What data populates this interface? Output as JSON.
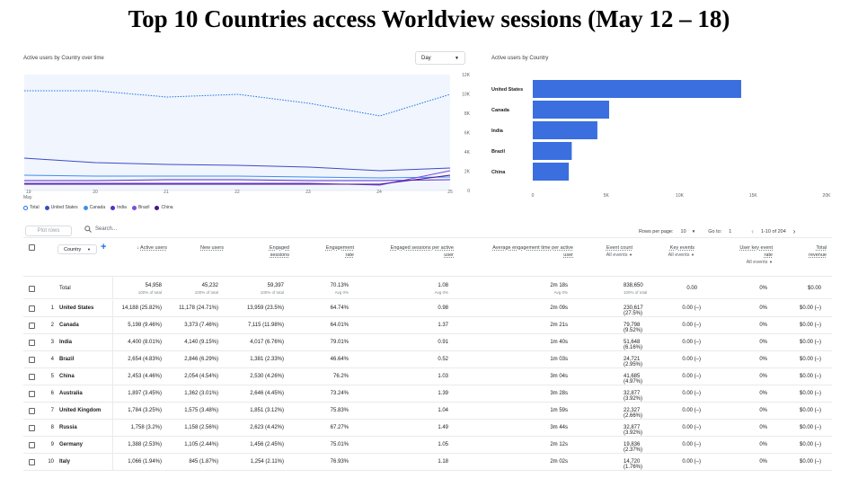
{
  "title": "Top 10 Countries access Worldview sessions (May 12 – 18)",
  "line_chart": {
    "title": "Active users by Country over time",
    "period_select": "Day",
    "y_ticks": [
      "12K",
      "10K",
      "8K",
      "6K",
      "4K",
      "2K",
      "0"
    ],
    "x_ticks": [
      "19",
      "20",
      "21",
      "22",
      "23",
      "24",
      "25"
    ],
    "x_month": "May",
    "legend": [
      "Total",
      "United States",
      "Canada",
      "India",
      "Brazil",
      "China"
    ],
    "colors": [
      "#1a73e8",
      "#3c4cc8",
      "#3f8ef0",
      "#5a2bd0",
      "#7b4ce0",
      "#4a148c"
    ]
  },
  "chart_data": {
    "type": "bar",
    "title": "Active users by Country",
    "categories": [
      "United States",
      "Canada",
      "India",
      "Brazil",
      "China"
    ],
    "values": [
      14188,
      5198,
      4400,
      2654,
      2453
    ],
    "x_ticks": [
      "0",
      "5K",
      "10K",
      "15K",
      "20K"
    ],
    "xlim": [
      0,
      20000
    ],
    "color": "#3b6fe0"
  },
  "toolbar": {
    "plot_rows": "Plot rows",
    "search_placeholder": "Search...",
    "rows_per_page_label": "Rows per page:",
    "rows_per_page": "10",
    "goto_label": "Go to:",
    "goto_value": "1",
    "range": "1-10 of 204"
  },
  "table": {
    "dim_select": "Country",
    "headers": {
      "active": "Active users",
      "new": "New users",
      "eng1": "Engaged",
      "eng2": "sessions",
      "rate1": "Engagement",
      "rate2": "rate",
      "per1": "Engaged sessions per active",
      "per2": "user",
      "time1": "Average engagement time per active",
      "time2": "user",
      "event1": "Event count",
      "event2": "All events",
      "key1": "Key events",
      "key2": "All events",
      "ukr1": "User key event",
      "ukr2": "rate",
      "ukr3": "All events",
      "rev1": "Total",
      "rev2": "revenue"
    },
    "total": {
      "label": "Total",
      "active": "54,958",
      "active_sub": "100% of total",
      "new": "45,232",
      "new_sub": "100% of total",
      "engaged": "59,397",
      "engaged_sub": "100% of total",
      "rate": "70.13%",
      "rate_sub": "Avg 0%",
      "per_user": "1.08",
      "per_user_sub": "Avg 0%",
      "time": "2m 18s",
      "time_sub": "Avg 0%",
      "events": "838,650",
      "events_sub": "100% of total",
      "key": "0.00",
      "ukr": "0%",
      "revenue": "$0.00"
    },
    "rows": [
      {
        "n": "1",
        "country": "United States",
        "active": "14,188 (25.82%)",
        "new": "11,178 (24.71%)",
        "engaged": "13,959 (23.5%)",
        "rate": "64.74%",
        "per_user": "0.98",
        "time": "2m 09s",
        "events": "230,617 (27.5%)",
        "key": "0.00 (–)",
        "ukr": "0%",
        "revenue": "$0.00 (–)"
      },
      {
        "n": "2",
        "country": "Canada",
        "active": "5,198 (9.46%)",
        "new": "3,373 (7.46%)",
        "engaged": "7,115 (11.98%)",
        "rate": "64.01%",
        "per_user": "1.37",
        "time": "2m 21s",
        "events": "79,798 (9.52%)",
        "key": "0.00 (–)",
        "ukr": "0%",
        "revenue": "$0.00 (–)"
      },
      {
        "n": "3",
        "country": "India",
        "active": "4,400 (8.01%)",
        "new": "4,140 (9.15%)",
        "engaged": "4,017 (6.76%)",
        "rate": "79.01%",
        "per_user": "0.91",
        "time": "1m 40s",
        "events": "51,648 (6.16%)",
        "key": "0.00 (–)",
        "ukr": "0%",
        "revenue": "$0.00 (–)"
      },
      {
        "n": "4",
        "country": "Brazil",
        "active": "2,654 (4.83%)",
        "new": "2,846 (6.29%)",
        "engaged": "1,381 (2.33%)",
        "rate": "46.64%",
        "per_user": "0.52",
        "time": "1m 03s",
        "events": "24,721 (2.95%)",
        "key": "0.00 (–)",
        "ukr": "0%",
        "revenue": "$0.00 (–)"
      },
      {
        "n": "5",
        "country": "China",
        "active": "2,453 (4.46%)",
        "new": "2,054 (4.54%)",
        "engaged": "2,530 (4.26%)",
        "rate": "76.2%",
        "per_user": "1.03",
        "time": "3m 04s",
        "events": "41,685 (4.97%)",
        "key": "0.00 (–)",
        "ukr": "0%",
        "revenue": "$0.00 (–)"
      },
      {
        "n": "6",
        "country": "Australia",
        "active": "1,897 (3.45%)",
        "new": "1,362 (3.01%)",
        "engaged": "2,646 (4.45%)",
        "rate": "73.24%",
        "per_user": "1.39",
        "time": "3m 28s",
        "events": "32,877 (3.92%)",
        "key": "0.00 (–)",
        "ukr": "0%",
        "revenue": "$0.00 (–)"
      },
      {
        "n": "7",
        "country": "United Kingdom",
        "active": "1,784 (3.25%)",
        "new": "1,575 (3.48%)",
        "engaged": "1,851 (3.12%)",
        "rate": "75.83%",
        "per_user": "1.04",
        "time": "1m 59s",
        "events": "22,327 (2.66%)",
        "key": "0.00 (–)",
        "ukr": "0%",
        "revenue": "$0.00 (–)"
      },
      {
        "n": "8",
        "country": "Russia",
        "active": "1,758 (3.2%)",
        "new": "1,158 (2.56%)",
        "engaged": "2,623 (4.42%)",
        "rate": "67.27%",
        "per_user": "1.49",
        "time": "3m 44s",
        "events": "32,877 (3.92%)",
        "key": "0.00 (–)",
        "ukr": "0%",
        "revenue": "$0.00 (–)"
      },
      {
        "n": "9",
        "country": "Germany",
        "active": "1,388 (2.53%)",
        "new": "1,105 (2.44%)",
        "engaged": "1,456 (2.45%)",
        "rate": "75.01%",
        "per_user": "1.05",
        "time": "2m 12s",
        "events": "19,836 (2.37%)",
        "key": "0.00 (–)",
        "ukr": "0%",
        "revenue": "$0.00 (–)"
      },
      {
        "n": "10",
        "country": "Italy",
        "active": "1,066 (1.94%)",
        "new": "845 (1.87%)",
        "engaged": "1,254 (2.11%)",
        "rate": "76.93%",
        "per_user": "1.18",
        "time": "2m 02s",
        "events": "14,720 (1.76%)",
        "key": "0.00 (–)",
        "ukr": "0%",
        "revenue": "$0.00 (–)"
      }
    ]
  }
}
